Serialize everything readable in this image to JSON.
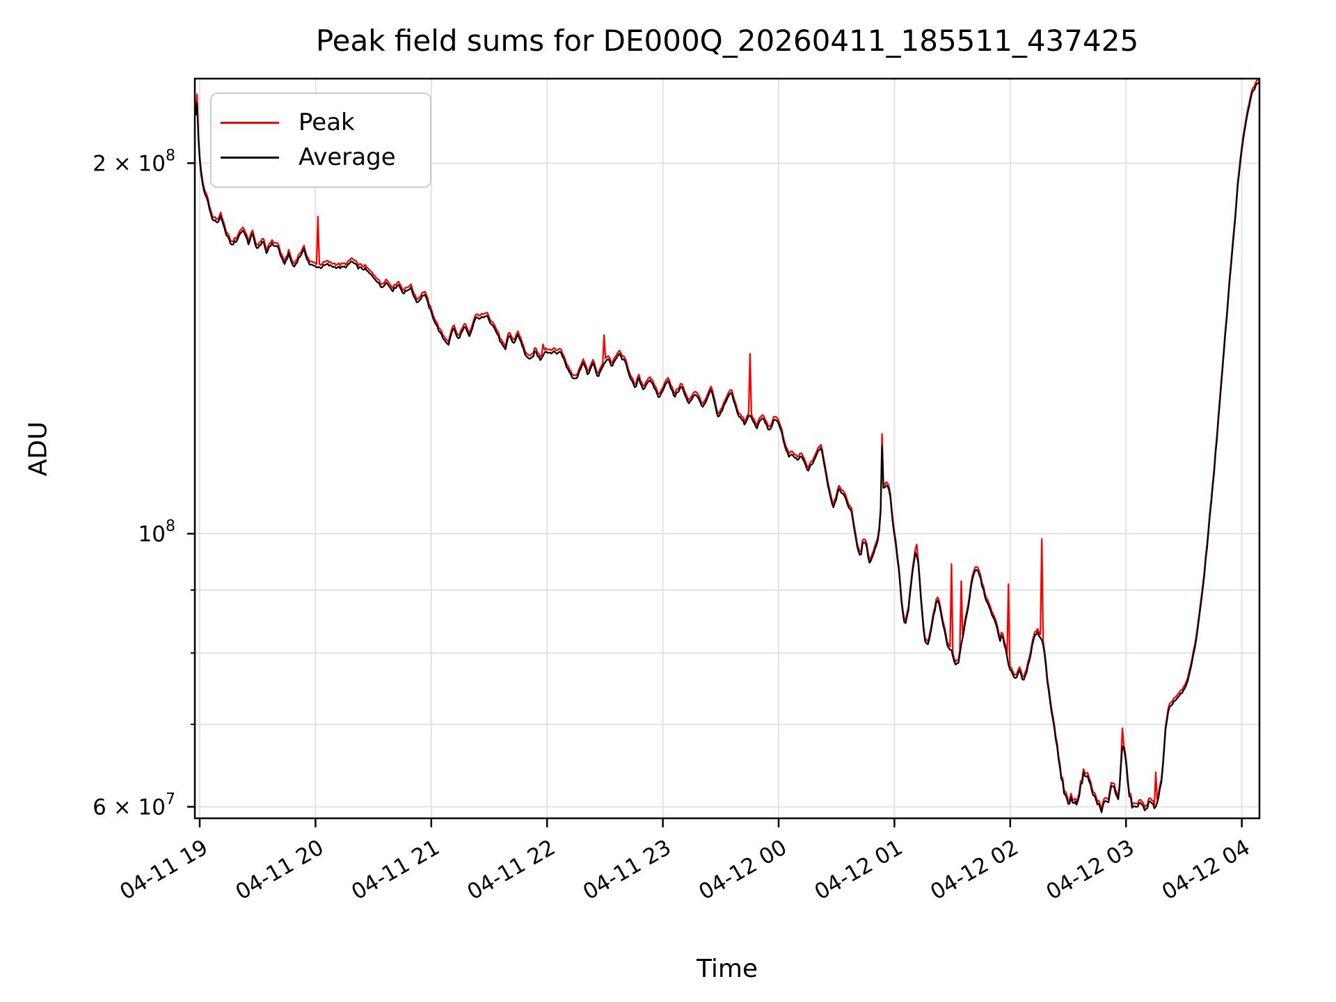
{
  "chart_data": {
    "type": "line",
    "title": "Peak field sums for DE000Q_20260411_185511_437425",
    "xlabel": "Time",
    "ylabel": "ADU",
    "yscale": "log",
    "grid": true,
    "legend_position": "upper-left",
    "colors": {
      "peak": "#ff0000",
      "average": "#000000",
      "grid": "#e0e0e0",
      "spine": "#000000",
      "legend_border": "#cccccc",
      "background": "#ffffff"
    },
    "legend": [
      {
        "label": "Peak",
        "color": "#ff0000"
      },
      {
        "label": "Average",
        "color": "#000000"
      }
    ],
    "x_ticks": [
      {
        "hour": 0,
        "label": "04-11 19"
      },
      {
        "hour": 1,
        "label": "04-11 20"
      },
      {
        "hour": 2,
        "label": "04-11 21"
      },
      {
        "hour": 3,
        "label": "04-11 22"
      },
      {
        "hour": 4,
        "label": "04-11 23"
      },
      {
        "hour": 5,
        "label": "04-12 00"
      },
      {
        "hour": 6,
        "label": "04-12 01"
      },
      {
        "hour": 7,
        "label": "04-12 02"
      },
      {
        "hour": 8,
        "label": "04-12 03"
      },
      {
        "hour": 9,
        "label": "04-12 04"
      }
    ],
    "y_ticks": [
      {
        "mantissa": "2 × 10",
        "exponent": "8",
        "value_e6": 200
      },
      {
        "mantissa": "10",
        "exponent": "8",
        "value_e6": 100
      },
      {
        "mantissa": "6 × 10",
        "exponent": "7",
        "value_e6": 60
      }
    ],
    "y_minor_tick_values_e6": [
      90,
      80,
      70
    ],
    "grid_values_e6": [
      200,
      100,
      90,
      80,
      70,
      60
    ],
    "x_range_hours_from_19": [
      -0.042,
      9.152
    ],
    "y_range_e6": [
      58.7,
      234.3
    ],
    "units": "ADU, times are 04-11/04-12 hours",
    "peak_offset_ratio": 1.006,
    "noise": {
      "base_ratio": 0.0025,
      "floor_ratio": 0.006,
      "floor_threshold_e6": 66
    },
    "average_points_t_v_e6": [
      [
        -0.035,
        219
      ],
      [
        -0.03,
        225.5
      ],
      [
        -0.024,
        225
      ],
      [
        -0.015,
        213
      ],
      [
        -0.005,
        203
      ],
      [
        0.006,
        199
      ],
      [
        0.02,
        193
      ],
      [
        0.04,
        189
      ],
      [
        0.066,
        187
      ],
      [
        0.09,
        183
      ],
      [
        0.108,
        180
      ],
      [
        0.13,
        179.5
      ],
      [
        0.156,
        179
      ],
      [
        0.18,
        181
      ],
      [
        0.2,
        178.5
      ],
      [
        0.22,
        176
      ],
      [
        0.25,
        173.5
      ],
      [
        0.276,
        171.5
      ],
      [
        0.3,
        172.5
      ],
      [
        0.32,
        173
      ],
      [
        0.35,
        175.5
      ],
      [
        0.38,
        176.5
      ],
      [
        0.4,
        174
      ],
      [
        0.421,
        172
      ],
      [
        0.44,
        174
      ],
      [
        0.457,
        175
      ],
      [
        0.48,
        172
      ],
      [
        0.499,
        170
      ],
      [
        0.52,
        171.5
      ],
      [
        0.547,
        173
      ],
      [
        0.563,
        170.5
      ],
      [
        0.577,
        169
      ],
      [
        0.6,
        171
      ],
      [
        0.619,
        172
      ],
      [
        0.64,
        171.5
      ],
      [
        0.66,
        171.2
      ],
      [
        0.679,
        171
      ],
      [
        0.7,
        168
      ],
      [
        0.727,
        165.5
      ],
      [
        0.75,
        167
      ],
      [
        0.769,
        168.7
      ],
      [
        0.79,
        166.5
      ],
      [
        0.811,
        164.5
      ],
      [
        0.835,
        166
      ],
      [
        0.859,
        167.7
      ],
      [
        0.88,
        168.8
      ],
      [
        0.901,
        170
      ],
      [
        0.925,
        167.5
      ],
      [
        0.949,
        165.5
      ],
      [
        0.98,
        165
      ],
      [
        1.016,
        164.8
      ],
      [
        1.04,
        164.5
      ],
      [
        1.07,
        165
      ],
      [
        1.1,
        165.5
      ],
      [
        1.13,
        165
      ],
      [
        1.16,
        164.8
      ],
      [
        1.19,
        164.6
      ],
      [
        1.22,
        164.5
      ],
      [
        1.25,
        164.7
      ],
      [
        1.28,
        165
      ],
      [
        1.31,
        166.5
      ],
      [
        1.34,
        165.5
      ],
      [
        1.37,
        164.5
      ],
      [
        1.4,
        164.2
      ],
      [
        1.43,
        164
      ],
      [
        1.47,
        162.5
      ],
      [
        1.52,
        161
      ],
      [
        1.545,
        159.7
      ],
      [
        1.568,
        158.5
      ],
      [
        1.59,
        159.3
      ],
      [
        1.611,
        160
      ],
      [
        1.64,
        158.8
      ],
      [
        1.671,
        157.6
      ],
      [
        1.69,
        158.5
      ],
      [
        1.713,
        159.5
      ],
      [
        1.74,
        158
      ],
      [
        1.761,
        156.7
      ],
      [
        1.79,
        157.6
      ],
      [
        1.821,
        158.5
      ],
      [
        1.85,
        156
      ],
      [
        1.881,
        154
      ],
      [
        1.91,
        155.4
      ],
      [
        1.941,
        156.7
      ],
      [
        1.97,
        154
      ],
      [
        2.001,
        151
      ],
      [
        2.04,
        148
      ],
      [
        2.08,
        145.3
      ],
      [
        2.11,
        143.8
      ],
      [
        2.15,
        142.5
      ],
      [
        2.19,
        147.2
      ],
      [
        2.23,
        143.8
      ],
      [
        2.26,
        145.5
      ],
      [
        2.29,
        147.2
      ],
      [
        2.33,
        144.4
      ],
      [
        2.38,
        149.5
      ],
      [
        2.42,
        149.8
      ],
      [
        2.46,
        149.7
      ],
      [
        2.48,
        151
      ],
      [
        2.51,
        148.5
      ],
      [
        2.54,
        147.2
      ],
      [
        2.57,
        145.3
      ],
      [
        2.6,
        143
      ],
      [
        2.64,
        140.8
      ],
      [
        2.67,
        145.3
      ],
      [
        2.69,
        144
      ],
      [
        2.71,
        142.5
      ],
      [
        2.75,
        145.3
      ],
      [
        2.78,
        142.5
      ],
      [
        2.81,
        140
      ],
      [
        2.85,
        138.2
      ],
      [
        2.88,
        139.5
      ],
      [
        2.9,
        140.8
      ],
      [
        2.92,
        139.5
      ],
      [
        2.94,
        138.5
      ],
      [
        2.963,
        139.5
      ],
      [
        2.98,
        140.8
      ],
      [
        3.01,
        140.3
      ],
      [
        3.05,
        140.5
      ],
      [
        3.08,
        140.2
      ],
      [
        3.12,
        140.5
      ],
      [
        3.17,
        136.6
      ],
      [
        3.22,
        134
      ],
      [
        3.26,
        133.8
      ],
      [
        3.31,
        138
      ],
      [
        3.35,
        134.7
      ],
      [
        3.4,
        137.5
      ],
      [
        3.44,
        133.8
      ],
      [
        3.49,
        137.5
      ],
      [
        3.53,
        138.8
      ],
      [
        3.56,
        136.6
      ],
      [
        3.62,
        140
      ],
      [
        3.68,
        137.5
      ],
      [
        3.71,
        134.7
      ],
      [
        3.76,
        131
      ],
      [
        3.79,
        133.8
      ],
      [
        3.83,
        131
      ],
      [
        3.88,
        133.3
      ],
      [
        3.92,
        131.8
      ],
      [
        3.97,
        128.8
      ],
      [
        4.0,
        131
      ],
      [
        4.04,
        133.3
      ],
      [
        4.1,
        129.2
      ],
      [
        4.16,
        131.8
      ],
      [
        4.22,
        127.5
      ],
      [
        4.28,
        130
      ],
      [
        4.35,
        126.6
      ],
      [
        4.42,
        131
      ],
      [
        4.45,
        127
      ],
      [
        4.48,
        124
      ],
      [
        4.54,
        127.9
      ],
      [
        4.59,
        130.4
      ],
      [
        4.65,
        125
      ],
      [
        4.71,
        122.6
      ],
      [
        4.748,
        125
      ],
      [
        4.81,
        121.9
      ],
      [
        4.86,
        124.3
      ],
      [
        4.92,
        121.2
      ],
      [
        4.96,
        123.6
      ],
      [
        5.0,
        123.2
      ],
      [
        5.03,
        120.5
      ],
      [
        5.06,
        117
      ],
      [
        5.09,
        115.5
      ],
      [
        5.12,
        115.8
      ],
      [
        5.16,
        114.8
      ],
      [
        5.2,
        115.5
      ],
      [
        5.25,
        112.5
      ],
      [
        5.28,
        113.5
      ],
      [
        5.31,
        115
      ],
      [
        5.34,
        116.5
      ],
      [
        5.37,
        117.5
      ],
      [
        5.4,
        113
      ],
      [
        5.43,
        109
      ],
      [
        5.47,
        105
      ],
      [
        5.5,
        107
      ],
      [
        5.52,
        109
      ],
      [
        5.56,
        107.5
      ],
      [
        5.6,
        105.5
      ],
      [
        5.63,
        104
      ],
      [
        5.66,
        100
      ],
      [
        5.68,
        97.5
      ],
      [
        5.71,
        95.5
      ],
      [
        5.73,
        99
      ],
      [
        5.76,
        97.5
      ],
      [
        5.785,
        94.5
      ],
      [
        5.81,
        96
      ],
      [
        5.83,
        97
      ],
      [
        5.86,
        99
      ],
      [
        5.88,
        103
      ],
      [
        5.893,
        118
      ],
      [
        5.905,
        109
      ],
      [
        5.93,
        109.5
      ],
      [
        5.96,
        108.5
      ],
      [
        5.98,
        103
      ],
      [
        6.005,
        99
      ],
      [
        6.04,
        93
      ],
      [
        6.065,
        87
      ],
      [
        6.09,
        84
      ],
      [
        6.12,
        86.5
      ],
      [
        6.15,
        92
      ],
      [
        6.18,
        96.5
      ],
      [
        6.205,
        95
      ],
      [
        6.23,
        88
      ],
      [
        6.26,
        82
      ],
      [
        6.285,
        81
      ],
      [
        6.31,
        83
      ],
      [
        6.34,
        86
      ],
      [
        6.37,
        88.5
      ],
      [
        6.4,
        86.5
      ],
      [
        6.43,
        83.5
      ],
      [
        6.46,
        81
      ],
      [
        6.49,
        80.5
      ],
      [
        6.52,
        78.5
      ],
      [
        6.55,
        78.2
      ],
      [
        6.58,
        81.5
      ],
      [
        6.61,
        84.5
      ],
      [
        6.64,
        87.5
      ],
      [
        6.67,
        91.5
      ],
      [
        6.7,
        93.5
      ],
      [
        6.73,
        93
      ],
      [
        6.76,
        90.5
      ],
      [
        6.79,
        88.5
      ],
      [
        6.82,
        87
      ],
      [
        6.85,
        85.5
      ],
      [
        6.88,
        84.5
      ],
      [
        6.91,
        81.5
      ],
      [
        6.93,
        83
      ],
      [
        6.96,
        80.5
      ],
      [
        6.99,
        77.8
      ],
      [
        7.02,
        76.8
      ],
      [
        7.05,
        76.3
      ],
      [
        7.08,
        77.5
      ],
      [
        7.11,
        76
      ],
      [
        7.14,
        77.2
      ],
      [
        7.17,
        79
      ],
      [
        7.2,
        82
      ],
      [
        7.23,
        83.2
      ],
      [
        7.26,
        82.5
      ],
      [
        7.29,
        81
      ],
      [
        7.32,
        76
      ],
      [
        7.35,
        72.5
      ],
      [
        7.38,
        69.5
      ],
      [
        7.41,
        66.5
      ],
      [
        7.44,
        63.5
      ],
      [
        7.47,
        61.5
      ],
      [
        7.5,
        60.3
      ],
      [
        7.53,
        61
      ],
      [
        7.56,
        60.2
      ],
      [
        7.59,
        61
      ],
      [
        7.62,
        63
      ],
      [
        7.64,
        64
      ],
      [
        7.67,
        63.5
      ],
      [
        7.7,
        62
      ],
      [
        7.73,
        61
      ],
      [
        7.76,
        60.2
      ],
      [
        7.79,
        59.7
      ],
      [
        7.82,
        60.5
      ],
      [
        7.85,
        60.5
      ],
      [
        7.88,
        62.8
      ],
      [
        7.91,
        61.5
      ],
      [
        7.94,
        61
      ],
      [
        7.97,
        67.5
      ],
      [
        7.99,
        66.5
      ],
      [
        8.02,
        62
      ],
      [
        8.05,
        60.2
      ],
      [
        8.08,
        59.8
      ],
      [
        8.11,
        60.3
      ],
      [
        8.14,
        60
      ],
      [
        8.17,
        59.9
      ],
      [
        8.2,
        60.4
      ],
      [
        8.23,
        60.1
      ],
      [
        8.26,
        60.2
      ],
      [
        8.29,
        61.5
      ],
      [
        8.32,
        64.5
      ],
      [
        8.34,
        69
      ],
      [
        8.37,
        72
      ],
      [
        8.4,
        72.8
      ],
      [
        8.43,
        73.3
      ],
      [
        8.46,
        73.8
      ],
      [
        8.49,
        74.3
      ],
      [
        8.52,
        75.2
      ],
      [
        8.55,
        77
      ],
      [
        8.58,
        79.5
      ],
      [
        8.61,
        82.5
      ],
      [
        8.64,
        86.5
      ],
      [
        8.67,
        91.5
      ],
      [
        8.7,
        97.5
      ],
      [
        8.73,
        104.5
      ],
      [
        8.76,
        112
      ],
      [
        8.79,
        121
      ],
      [
        8.82,
        131
      ],
      [
        8.85,
        142
      ],
      [
        8.88,
        154
      ],
      [
        8.91,
        166.5
      ],
      [
        8.94,
        179
      ],
      [
        8.97,
        194
      ],
      [
        9.0,
        205
      ],
      [
        9.03,
        214
      ],
      [
        9.06,
        222
      ],
      [
        9.09,
        228
      ],
      [
        9.12,
        231
      ],
      [
        9.15,
        233
      ],
      [
        9.16,
        233.2
      ]
    ],
    "peak_spikes_t_v_e6": [
      [
        -0.028,
        227.5
      ],
      [
        1.016,
        181
      ],
      [
        2.963,
        142.5
      ],
      [
        3.49,
        145
      ],
      [
        4.748,
        140
      ],
      [
        5.896,
        120.5
      ],
      [
        6.19,
        98
      ],
      [
        6.49,
        94.5
      ],
      [
        6.575,
        91.5
      ],
      [
        6.989,
        91
      ],
      [
        7.272,
        99
      ],
      [
        7.969,
        69.5
      ],
      [
        8.251,
        64
      ]
    ]
  }
}
